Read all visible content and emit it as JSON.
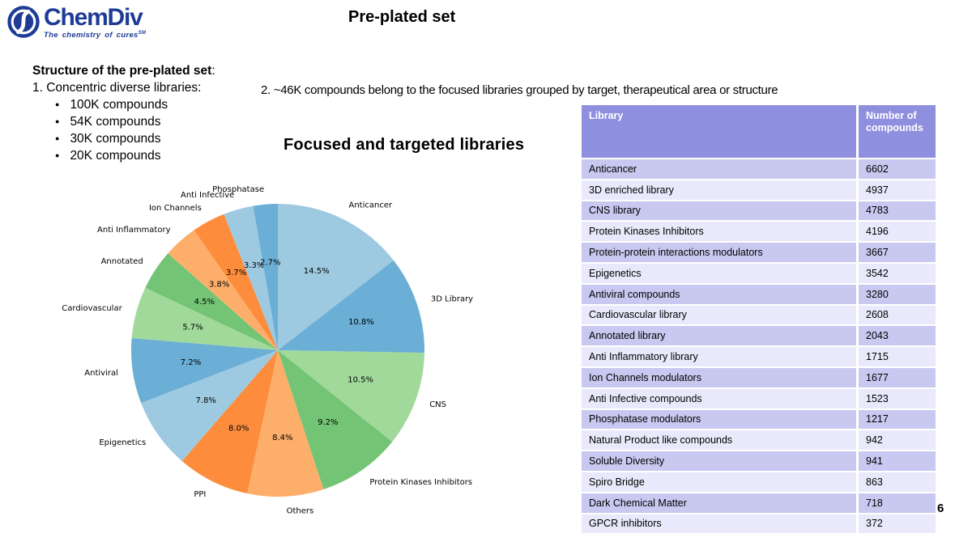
{
  "logo": {
    "name": "ChemDiv",
    "tagline": "The chemistry of cures",
    "tagline_mark": "SM"
  },
  "header": {
    "title": "Pre-plated set"
  },
  "left_panel": {
    "heading": "Structure of the pre-plated set",
    "heading_colon": ":",
    "item1": "1. Concentric diverse libraries:",
    "bullets": [
      "100K compounds",
      "54K compounds",
      "30K compounds",
      "20K compounds"
    ]
  },
  "note2": "2. ~46K compounds belong to the focused libraries grouped by target, therapeutical area or structure",
  "chart_data": {
    "type": "pie",
    "title": "Focused and targeted libraries",
    "start_angle_deg": 90,
    "counterclock": false,
    "label_distance": 1.1,
    "pct_distance": 0.6,
    "slices": [
      {
        "label": "Anticancer",
        "pct": 14.5,
        "color": "#9ecae1"
      },
      {
        "label": "3D Library",
        "pct": 10.8,
        "color": "#6baed6"
      },
      {
        "label": "CNS",
        "pct": 10.5,
        "color": "#a1d99b"
      },
      {
        "label": "Protein Kinases Inhibitors",
        "pct": 9.2,
        "color": "#74c476"
      },
      {
        "label": "Others",
        "pct": 8.4,
        "color": "#fdae6b"
      },
      {
        "label": "PPI",
        "pct": 8.0,
        "color": "#fd8d3c"
      },
      {
        "label": "Epigenetics",
        "pct": 7.8,
        "color": "#9ecae1"
      },
      {
        "label": "Antiviral",
        "pct": 7.2,
        "color": "#6baed6"
      },
      {
        "label": "Cardiovascular",
        "pct": 5.7,
        "color": "#a1d99b"
      },
      {
        "label": "Annotated",
        "pct": 4.5,
        "color": "#74c476"
      },
      {
        "label": "Anti Inflammatory",
        "pct": 3.8,
        "color": "#fdae6b"
      },
      {
        "label": "Ion Channels",
        "pct": 3.7,
        "color": "#fd8d3c"
      },
      {
        "label": "Anti Infective",
        "pct": 3.3,
        "color": "#9ecae1"
      },
      {
        "label": "Phosphatase",
        "pct": 2.7,
        "color": "#6baed6"
      }
    ]
  },
  "table": {
    "columns": [
      "Library",
      "Number of compounds"
    ],
    "rows": [
      [
        "Anticancer",
        "6602"
      ],
      [
        "3D enriched library",
        "4937"
      ],
      [
        "CNS library",
        "4783"
      ],
      [
        "Protein Kinases Inhibitors",
        "4196"
      ],
      [
        "Protein-protein interactions modulators",
        "3667"
      ],
      [
        "Epigenetics",
        "3542"
      ],
      [
        "Antiviral compounds",
        "3280"
      ],
      [
        "Cardiovascular library",
        "2608"
      ],
      [
        "Annotated library",
        "2043"
      ],
      [
        "Anti Inflammatory library",
        "1715"
      ],
      [
        "Ion Channels modulators",
        "1677"
      ],
      [
        "Anti Infective compounds",
        "1523"
      ],
      [
        "Phosphatase modulators",
        "1217"
      ],
      [
        "Natural Product like compounds",
        "942"
      ],
      [
        "Soluble Diversity",
        "941"
      ],
      [
        "Spiro Bridge",
        "863"
      ],
      [
        "Dark Chemical Matter",
        "718"
      ],
      [
        "GPCR inhibitors",
        "372"
      ]
    ]
  },
  "page_number": "6",
  "colors": {
    "logo_navy": "#1e3c96",
    "table_header_bg": "#8f8fe0",
    "table_row_odd": "#c8c8f0",
    "table_row_even": "#e9e9fb",
    "text": "#000000"
  }
}
